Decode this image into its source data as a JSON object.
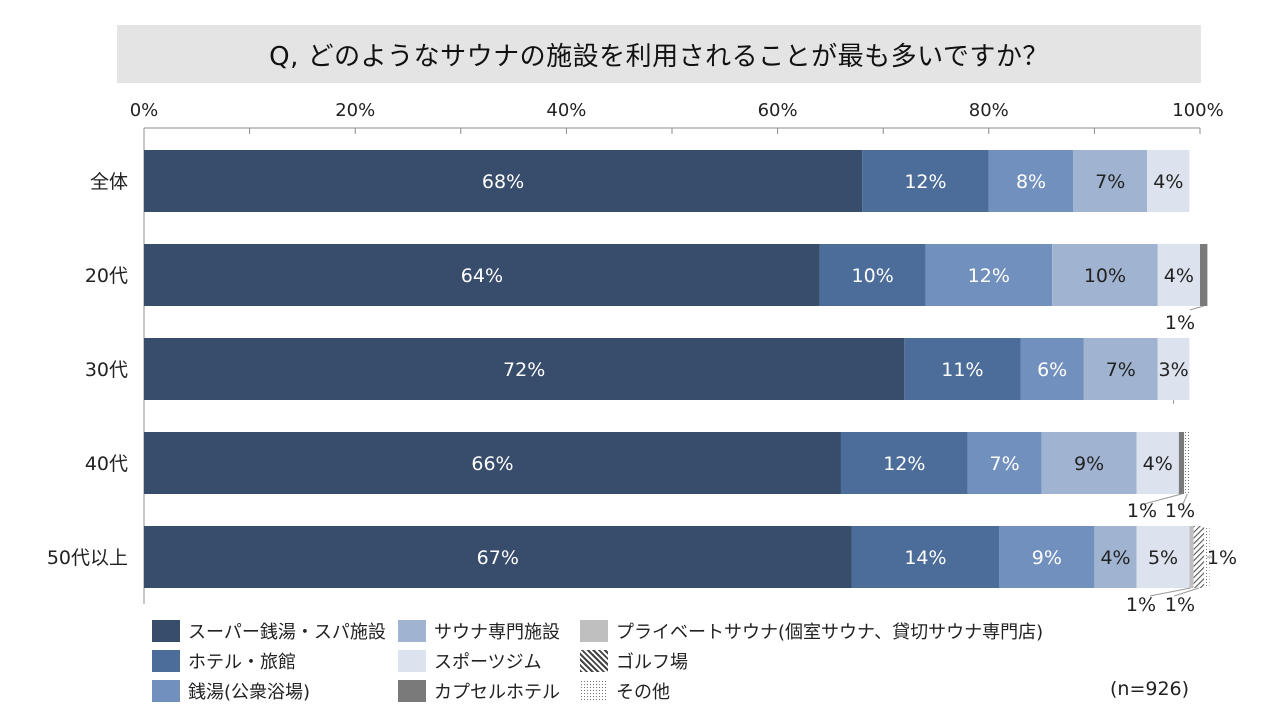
{
  "title": "Q, どのようなサウナの施設を利用されることが最も多いですか？",
  "note": "(n=926)",
  "colors": {
    "super_sento_spa": "#374d6b",
    "hotel_ryokan": "#4c6d9a",
    "sento": "#7190bd",
    "sauna_specialty": "#a0b4d1",
    "sports_gym": "#dde3ee",
    "private_sauna": "#bfbfbf",
    "capsule_hotel": "#7a7a7a",
    "golf": "#8a8a8a",
    "other": "#aaaaaa"
  },
  "legend": [
    {
      "key": "super_sento_spa",
      "label": "スーパー銭湯・スパ施設",
      "pattern": "solid"
    },
    {
      "key": "hotel_ryokan",
      "label": "ホテル・旅館",
      "pattern": "solid"
    },
    {
      "key": "sento",
      "label": "銭湯(公衆浴場)",
      "pattern": "solid"
    },
    {
      "key": "sauna_specialty",
      "label": "サウナ専門施設",
      "pattern": "solid"
    },
    {
      "key": "sports_gym",
      "label": "スポーツジム",
      "pattern": "solid"
    },
    {
      "key": "capsule_hotel",
      "label": "カプセルホテル",
      "pattern": "solid"
    },
    {
      "key": "private_sauna",
      "label": "プライベートサウナ(個室サウナ、貸切サウナ専門店)",
      "pattern": "solid"
    },
    {
      "key": "golf",
      "label": "ゴルフ場",
      "pattern": "hatch"
    },
    {
      "key": "other",
      "label": "その他",
      "pattern": "dots"
    }
  ],
  "chart_data": {
    "type": "bar",
    "orientation": "horizontal",
    "stacked": "100%",
    "xlim": [
      0,
      100
    ],
    "xticks": [
      "0%",
      "20%",
      "40%",
      "60%",
      "80%",
      "100%"
    ],
    "categories": [
      "全体",
      "20代",
      "30代",
      "40代",
      "50代以上"
    ],
    "series": [
      {
        "key": "super_sento_spa",
        "name": "スーパー銭湯・スパ施設",
        "values": [
          68,
          64,
          72,
          66,
          67
        ],
        "labels": [
          "68%",
          "64%",
          "72%",
          "66%",
          "67%"
        ]
      },
      {
        "key": "hotel_ryokan",
        "name": "ホテル・旅館",
        "values": [
          12,
          10,
          11,
          12,
          14
        ],
        "labels": [
          "12%",
          "10%",
          "11%",
          "12%",
          "14%"
        ]
      },
      {
        "key": "sento",
        "name": "銭湯(公衆浴場)",
        "values": [
          8,
          12,
          6,
          7,
          9
        ],
        "labels": [
          "8%",
          "12%",
          "6%",
          "7%",
          "9%"
        ]
      },
      {
        "key": "sauna_specialty",
        "name": "サウナ専門施設",
        "values": [
          7,
          10,
          7,
          9,
          4
        ],
        "labels": [
          "7%",
          "10%",
          "7%",
          "9%",
          "4%"
        ]
      },
      {
        "key": "sports_gym",
        "name": "スポーツジム",
        "values": [
          4,
          4,
          3,
          4,
          5
        ],
        "labels": [
          "4%",
          "4%",
          "3%",
          "4%",
          "5%"
        ]
      },
      {
        "key": "private_sauna",
        "name": "プライベートサウナ(個室サウナ、貸切サウナ専門店)",
        "values": [
          0,
          0,
          0,
          0,
          0.4
        ],
        "labels": [
          "",
          "",
          "",
          "",
          ""
        ]
      },
      {
        "key": "capsule_hotel",
        "name": "カプセルホテル",
        "values": [
          0,
          0.7,
          0,
          0.5,
          0
        ],
        "labels": [
          "",
          "1%",
          "",
          "1%",
          ""
        ]
      },
      {
        "key": "golf",
        "name": "ゴルフ場",
        "values": [
          0,
          0,
          0,
          0,
          1
        ],
        "labels": [
          "",
          "",
          "",
          "",
          "1%"
        ]
      },
      {
        "key": "other",
        "name": "その他",
        "values": [
          0,
          0,
          0,
          0.6,
          0.5
        ],
        "labels": [
          "",
          "",
          "",
          "1%",
          "1%"
        ]
      }
    ]
  }
}
